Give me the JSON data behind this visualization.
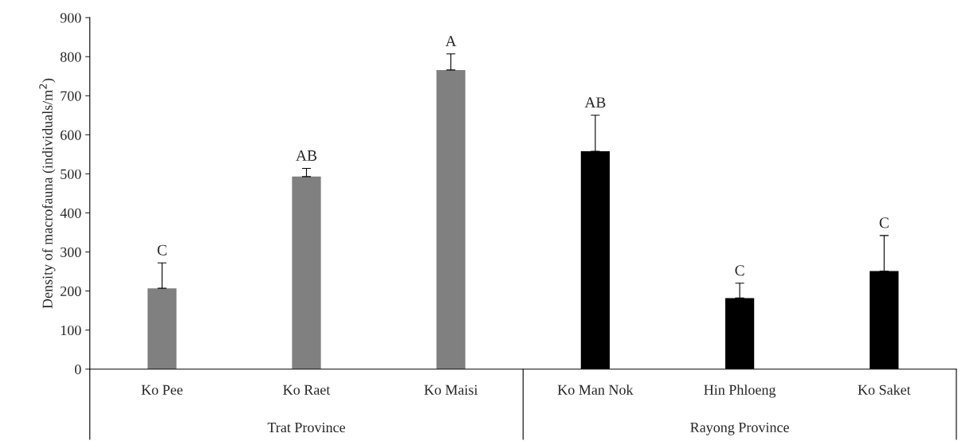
{
  "chart_data": {
    "type": "bar",
    "ylabel": "Density of macrofauna (individuals/m$^{2}$)",
    "categories": [
      "Ko Pee",
      "Ko Raet",
      "Ko Maisi",
      "Ko Man Nok",
      "Hin Phloeng",
      "Ko Saket"
    ],
    "values": [
      207,
      493,
      766,
      558,
      182,
      251
    ],
    "colors": [
      "#808080",
      "#808080",
      "#808080",
      "#000000",
      "#000000",
      "#000000"
    ],
    "errors": [
      [
        207,
        272
      ],
      [
        493,
        514
      ],
      [
        766,
        807
      ],
      [
        558,
        650
      ],
      [
        182,
        220
      ],
      [
        251,
        342
      ]
    ],
    "ylim": [
      0,
      900
    ],
    "yticks": [
      0,
      100,
      200,
      300,
      400,
      500,
      600,
      700,
      800,
      900
    ],
    "grid": false,
    "legend": false,
    "annotations": [
      {
        "text": "C",
        "x": "Ko Pee",
        "y": 272
      },
      {
        "text": "AB",
        "x": "Ko Raet",
        "y": 514
      },
      {
        "text": "A",
        "x": "Ko Maisi",
        "y": 807
      },
      {
        "text": "AB",
        "x": "Ko Man Nok",
        "y": 650
      },
      {
        "text": "C",
        "x": "Hin Phloeng",
        "y": 220
      },
      {
        "text": "C",
        "x": "Ko Saket",
        "y": 342
      },
      "Trat Province",
      "Rayong Province"
    ]
  }
}
